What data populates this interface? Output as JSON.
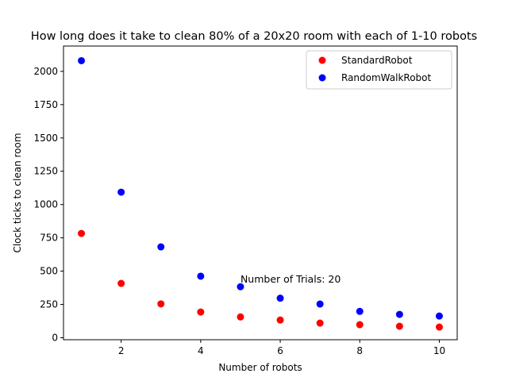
{
  "chart_data": {
    "type": "scatter",
    "title": "How long does it take to clean 80% of a 20x20 room with each of 1-10 robots",
    "xlabel": "Number of robots",
    "ylabel": "Clock ticks to clean room",
    "xlim": [
      0.55,
      10.45
    ],
    "ylim": [
      -15,
      2190
    ],
    "x_ticks": [
      2,
      4,
      6,
      8,
      10
    ],
    "x_tick_labels": [
      "2",
      "4",
      "6",
      "8",
      "10"
    ],
    "y_ticks": [
      0,
      250,
      500,
      750,
      1000,
      1250,
      1500,
      1750,
      2000
    ],
    "y_tick_labels": [
      "0",
      "250",
      "500",
      "750",
      "1000",
      "1250",
      "1500",
      "1750",
      "2000"
    ],
    "grid": false,
    "legend_position": "top-right",
    "series": [
      {
        "name": "StandardRobot",
        "color": "#ff0000",
        "x": [
          1,
          2,
          3,
          4,
          5,
          6,
          7,
          8,
          9,
          10
        ],
        "y": [
          783,
          408,
          254,
          193,
          156,
          133,
          110,
          98,
          86,
          80
        ]
      },
      {
        "name": "RandomWalkRobot",
        "color": "#0000ff",
        "x": [
          1,
          2,
          3,
          4,
          5,
          6,
          7,
          8,
          9,
          10
        ],
        "y": [
          2080,
          1093,
          682,
          462,
          383,
          297,
          253,
          198,
          175,
          163
        ]
      }
    ],
    "annotations": [
      {
        "text": "Number of Trials: 20",
        "x": 5,
        "y": 415
      }
    ]
  }
}
